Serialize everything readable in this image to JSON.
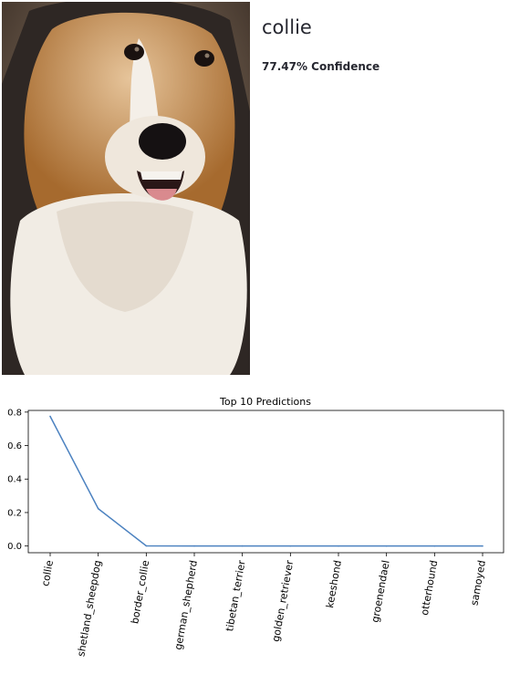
{
  "prediction": {
    "label": "collie",
    "confidence_text": "77.47% Confidence"
  },
  "image": {
    "subject": "collie dog photo"
  },
  "colors": {
    "line": "#4c82c0",
    "text": "#262730"
  },
  "chart_data": {
    "type": "line",
    "title": "Top 10 Predictions",
    "categories": [
      "collie",
      "shetland_sheepdog",
      "border_collie",
      "german_shepherd",
      "tibetan_terrier",
      "golden_retriever",
      "keeshond",
      "groenendael",
      "otterhound",
      "samoyed"
    ],
    "values": [
      0.7747,
      0.223,
      0.0008,
      0.0004,
      0.0003,
      0.0002,
      0.0002,
      0.0001,
      0.0001,
      0.0001
    ],
    "yticks": [
      "0.0",
      "0.2",
      "0.4",
      "0.6",
      "0.8"
    ],
    "ylim": [
      -0.04,
      0.81
    ],
    "grid": false
  }
}
